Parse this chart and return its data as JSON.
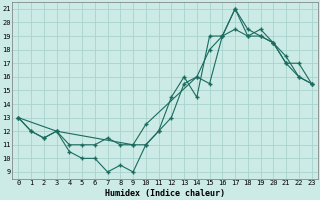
{
  "xlabel": "Humidex (Indice chaleur)",
  "bg_color": "#cceae6",
  "grid_color": "#aad4ce",
  "line_color": "#1a6b5e",
  "xlim": [
    -0.5,
    23.5
  ],
  "ylim": [
    8.5,
    21.5
  ],
  "xticks": [
    0,
    1,
    2,
    3,
    4,
    5,
    6,
    7,
    8,
    9,
    10,
    11,
    12,
    13,
    14,
    15,
    16,
    17,
    18,
    19,
    20,
    21,
    22,
    23
  ],
  "yticks": [
    9,
    10,
    11,
    12,
    13,
    14,
    15,
    16,
    17,
    18,
    19,
    20,
    21
  ],
  "line1_x": [
    0,
    1,
    2,
    3,
    4,
    5,
    6,
    7,
    8,
    9,
    10,
    11,
    12,
    13,
    14,
    15,
    16,
    17,
    18,
    19,
    20,
    21,
    22,
    23
  ],
  "line1_y": [
    13,
    12,
    11.5,
    12,
    10.5,
    10,
    10,
    9,
    9.5,
    9,
    11,
    12,
    14.5,
    16,
    14.5,
    19,
    19,
    21,
    19.5,
    19,
    18.5,
    17,
    16,
    15.5
  ],
  "line2_x": [
    0,
    1,
    2,
    3,
    4,
    5,
    6,
    7,
    8,
    9,
    10,
    11,
    12,
    13,
    14,
    15,
    16,
    17,
    18,
    19,
    20,
    21,
    22,
    23
  ],
  "line2_y": [
    13,
    12,
    11.5,
    12,
    11,
    11,
    11,
    11.5,
    11,
    11,
    11,
    12,
    13,
    15.5,
    16,
    18,
    19,
    19.5,
    19,
    19,
    18.5,
    17.5,
    16,
    15.5
  ],
  "line3_x": [
    0,
    3,
    9,
    10,
    14,
    15,
    16,
    17,
    18,
    19,
    20,
    21,
    22,
    23
  ],
  "line3_y": [
    13,
    12,
    11,
    12.5,
    16,
    15.5,
    19,
    21,
    19,
    19.5,
    18.5,
    17,
    17,
    15.5
  ],
  "markersize": 3,
  "linewidth": 0.8,
  "tick_fontsize": 5,
  "xlabel_fontsize": 6
}
